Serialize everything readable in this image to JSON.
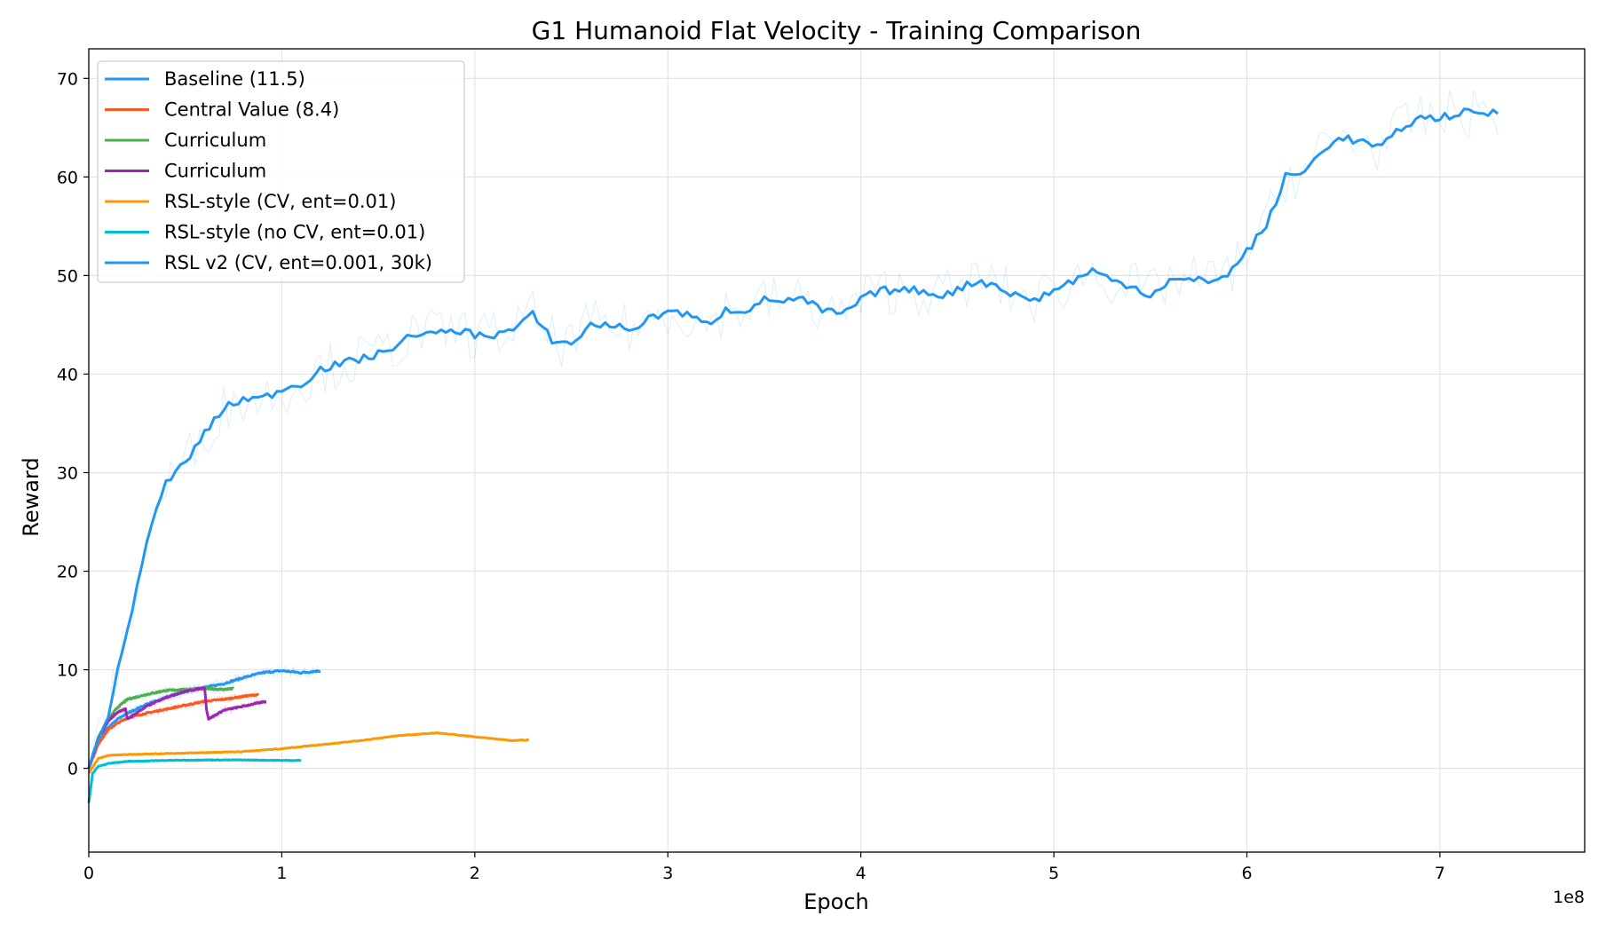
{
  "chart_data": {
    "type": "line",
    "title": "G1 Humanoid Flat Velocity - Training Comparison",
    "xlabel": "Epoch",
    "ylabel": "Reward",
    "x_offset_label": "1e8",
    "x_multiplier": 100000000,
    "xlim": [
      0,
      7.75
    ],
    "ylim": [
      -8.5,
      73
    ],
    "xticks": [
      0,
      1,
      2,
      3,
      4,
      5,
      6,
      7
    ],
    "yticks": [
      0,
      10,
      20,
      30,
      40,
      50,
      60,
      70
    ],
    "grid": true,
    "legend_position": "upper-left",
    "series": [
      {
        "name": "Baseline (11.5)",
        "color": "#2196f3",
        "x": [
          0,
          0.05,
          0.1,
          0.15,
          0.2,
          0.3,
          0.4,
          0.5,
          0.6,
          0.7,
          0.8,
          0.9,
          1.0,
          1.1,
          1.2
        ],
        "y": [
          0,
          2.6,
          4.1,
          5.0,
          5.6,
          6.5,
          7.2,
          7.8,
          8.2,
          8.6,
          9.2,
          9.7,
          9.9,
          9.7,
          9.9
        ]
      },
      {
        "name": "Central Value (8.4)",
        "color": "#ff5722",
        "x": [
          0,
          0.05,
          0.1,
          0.15,
          0.2,
          0.3,
          0.4,
          0.5,
          0.6,
          0.7,
          0.8,
          0.88
        ],
        "y": [
          0,
          2.5,
          3.9,
          4.6,
          5.1,
          5.6,
          6.0,
          6.4,
          6.8,
          7.0,
          7.3,
          7.5
        ]
      },
      {
        "name": "Curriculum",
        "color": "#4caf50",
        "x": [
          0,
          0.05,
          0.1,
          0.15,
          0.2,
          0.3,
          0.4,
          0.5,
          0.6,
          0.7,
          0.75
        ],
        "y": [
          0,
          3.2,
          5.0,
          6.2,
          7.0,
          7.5,
          7.9,
          8.0,
          8.1,
          8.0,
          8.1
        ]
      },
      {
        "name": "Curriculum",
        "color": "#9c27b0",
        "x": [
          0,
          0.05,
          0.1,
          0.15,
          0.17,
          0.19,
          0.2,
          0.3,
          0.4,
          0.5,
          0.6,
          0.61,
          0.62,
          0.7,
          0.8,
          0.92
        ],
        "y": [
          0,
          3.0,
          4.8,
          5.7,
          5.9,
          6.0,
          5.0,
          6.3,
          7.2,
          7.8,
          8.2,
          6.0,
          5.0,
          5.9,
          6.3,
          6.8
        ]
      },
      {
        "name": "RSL-style (CV, ent=0.01)",
        "color": "#ff9800",
        "x": [
          0,
          0.05,
          0.1,
          0.2,
          0.4,
          0.6,
          0.8,
          1.0,
          1.2,
          1.4,
          1.6,
          1.8,
          2.0,
          2.2,
          2.28
        ],
        "y": [
          -0.5,
          1.0,
          1.3,
          1.4,
          1.5,
          1.6,
          1.7,
          2.0,
          2.4,
          2.8,
          3.3,
          3.6,
          3.2,
          2.8,
          2.9
        ]
      },
      {
        "name": "RSL-style (no CV, ent=0.01)",
        "color": "#00bcd4",
        "x": [
          0,
          0.02,
          0.05,
          0.1,
          0.2,
          0.4,
          0.6,
          0.8,
          1.0,
          1.1
        ],
        "y": [
          -3.5,
          -0.5,
          0.2,
          0.5,
          0.7,
          0.8,
          0.85,
          0.85,
          0.8,
          0.8
        ]
      },
      {
        "name": "RSL v2 (CV, ent=0.001, 30k)",
        "color": "#2196f3",
        "x": [
          0,
          0.1,
          0.2,
          0.3,
          0.4,
          0.45,
          0.5,
          0.6,
          0.7,
          0.8,
          0.9,
          1.0,
          1.1,
          1.2,
          1.3,
          1.4,
          1.5,
          1.6,
          1.7,
          1.8,
          1.9,
          2.0,
          2.1,
          2.2,
          2.3,
          2.4,
          2.5,
          2.6,
          2.7,
          2.8,
          2.9,
          3.0,
          3.1,
          3.2,
          3.3,
          3.4,
          3.5,
          3.6,
          3.7,
          3.8,
          3.9,
          4.0,
          4.1,
          4.2,
          4.3,
          4.4,
          4.5,
          4.6,
          4.7,
          4.8,
          4.9,
          5.0,
          5.1,
          5.2,
          5.3,
          5.4,
          5.5,
          5.6,
          5.7,
          5.8,
          5.9,
          6.0,
          6.1,
          6.2,
          6.3,
          6.4,
          6.5,
          6.6,
          6.7,
          6.8,
          6.9,
          7.0,
          7.1,
          7.2,
          7.3
        ],
        "y": [
          0,
          5.5,
          14,
          23,
          29,
          30,
          31,
          34,
          36.5,
          37.5,
          37.5,
          38.5,
          39,
          40.5,
          41,
          41.5,
          42,
          43,
          44.2,
          44,
          44.5,
          44,
          44,
          44.5,
          46,
          43.5,
          43,
          45,
          45,
          44.5,
          45.5,
          46.5,
          46,
          45,
          46.5,
          46.5,
          47.5,
          47.5,
          47.5,
          46.5,
          46,
          47.5,
          48.5,
          48.5,
          48.5,
          48,
          48.5,
          49.5,
          49,
          48,
          47.5,
          48.5,
          49.5,
          50.5,
          49.5,
          49,
          48,
          49.5,
          49.5,
          49.5,
          50,
          52.5,
          55,
          60,
          60.5,
          63,
          64,
          63.5,
          63,
          65,
          66,
          66,
          66.5,
          66.5,
          66.5
        ]
      }
    ]
  }
}
